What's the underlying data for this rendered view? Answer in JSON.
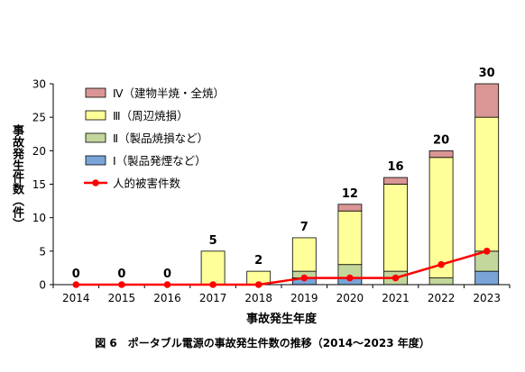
{
  "figure_caption": "図 6　ポータブル電源の事故発生件数の推移（2014〜2023 年度）",
  "chart_data": {
    "type": "bar",
    "stacked": true,
    "xlabel": "事故発生年度",
    "ylabel": "事故発生件数（件）",
    "ylim": [
      0,
      30
    ],
    "yticks": [
      0,
      5,
      10,
      15,
      20,
      25,
      30
    ],
    "grid": false,
    "legend_position": "top-left",
    "categories": [
      "2014",
      "2015",
      "2016",
      "2017",
      "2018",
      "2019",
      "2020",
      "2021",
      "2022",
      "2023"
    ],
    "series": [
      {
        "name": "Ⅰ（製品発煙など）",
        "color": "#7aa4d8",
        "values": [
          0,
          0,
          0,
          0,
          0,
          1,
          1,
          0,
          0,
          2
        ]
      },
      {
        "name": "Ⅱ（製品焼損など）",
        "color": "#c3d69b",
        "values": [
          0,
          0,
          0,
          0,
          0,
          1,
          2,
          2,
          1,
          3
        ]
      },
      {
        "name": "Ⅲ（周辺焼損）",
        "color": "#ffff99",
        "values": [
          0,
          0,
          0,
          5,
          2,
          5,
          8,
          13,
          18,
          20
        ]
      },
      {
        "name": "Ⅳ（建物半焼・全焼）",
        "color": "#d99694",
        "values": [
          0,
          0,
          0,
          0,
          0,
          0,
          1,
          1,
          1,
          5
        ]
      }
    ],
    "totals": [
      0,
      0,
      0,
      5,
      2,
      7,
      12,
      16,
      20,
      30
    ],
    "line_series": {
      "name": "人的被害件数",
      "color": "#ff0000",
      "values": [
        0,
        0,
        0,
        0,
        0,
        1,
        1,
        1,
        3,
        5
      ]
    }
  }
}
